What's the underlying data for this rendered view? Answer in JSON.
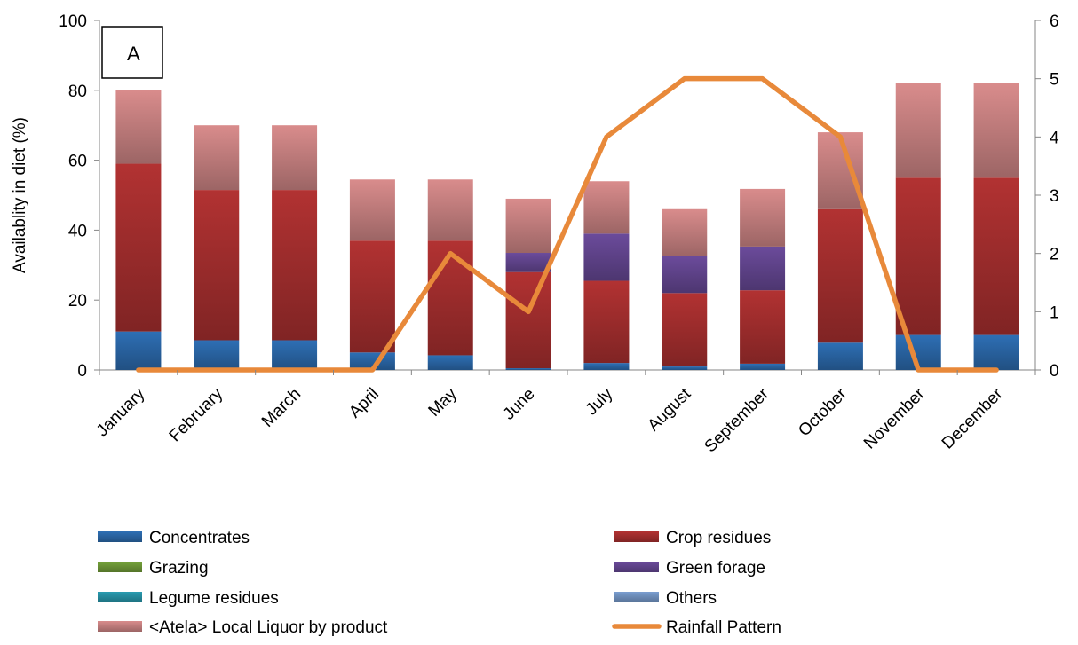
{
  "chart_data": {
    "type": "bar",
    "stacked": true,
    "panel_label": "A",
    "ylabel": "Availablity in diet (%)",
    "y2label": "",
    "ylim": [
      0,
      100
    ],
    "y2lim": [
      0,
      6
    ],
    "yticks": [
      "0",
      "20",
      "40",
      "60",
      "80",
      "100"
    ],
    "y2ticks": [
      "0",
      "1",
      "2",
      "3",
      "4",
      "5",
      "6"
    ],
    "categories": [
      "January",
      "February",
      "March",
      "April",
      "May",
      "June",
      "July",
      "August",
      "September",
      "October",
      "November",
      "December"
    ],
    "series": [
      {
        "name": "Concentrates",
        "color": "#2e6fb5",
        "values": [
          11,
          8.5,
          8.5,
          5,
          4.2,
          0.5,
          2,
          1,
          1.8,
          7.8,
          10,
          10
        ]
      },
      {
        "name": "Crop residues",
        "color": "#b23232",
        "values": [
          48,
          43,
          43,
          32,
          32.8,
          27.5,
          23.5,
          21,
          21,
          38.2,
          45,
          45
        ]
      },
      {
        "name": "Grazing",
        "color": "#76a33b",
        "values": [
          0,
          0,
          0,
          0,
          0,
          0,
          0,
          0,
          0,
          0,
          0,
          0
        ]
      },
      {
        "name": "Green forage",
        "color": "#6b4b9b",
        "values": [
          0,
          0,
          0,
          0,
          0,
          5.5,
          13.5,
          10.5,
          12.5,
          0,
          0,
          0
        ]
      },
      {
        "name": "Legume residues",
        "color": "#2a9bb0",
        "values": [
          0,
          0,
          0,
          0,
          0,
          0,
          0,
          0,
          0,
          0,
          0,
          0
        ]
      },
      {
        "name": "Others",
        "color": "#7a9ed0",
        "values": [
          0,
          0,
          0,
          0,
          0,
          0,
          0,
          0,
          0,
          0,
          0,
          0
        ]
      },
      {
        "name": "<Atela> Local Liquor by product",
        "color": "#d98c8c",
        "values": [
          21,
          18.5,
          18.5,
          17.5,
          17.5,
          15.5,
          15,
          13.5,
          16.5,
          22,
          27,
          27
        ]
      }
    ],
    "line_series": {
      "name": "Rainfall Pattern",
      "color": "#e8893a",
      "axis": "right",
      "values": [
        0,
        0,
        0,
        0,
        2,
        1,
        4,
        5,
        5,
        4,
        0,
        0
      ]
    },
    "legend_position": "bottom",
    "legend_order": [
      "Concentrates",
      "Crop residues",
      "Grazing",
      "Green forage",
      "Legume residues",
      "Others",
      "<Atela> Local Liquor by product",
      "Rainfall Pattern"
    ]
  }
}
